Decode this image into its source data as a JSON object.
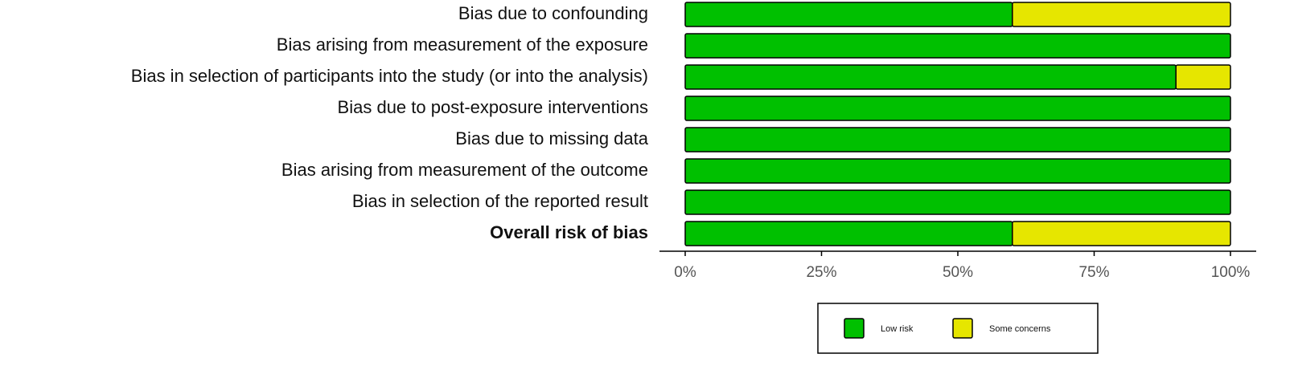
{
  "chart_data": {
    "type": "stacked-bar-horizontal",
    "categories": [
      "Bias due to confounding",
      "Bias arising from measurement of the exposure",
      "Bias in selection of participants into the study (or into the analysis)",
      "Bias due to post-exposure interventions",
      "Bias due to missing data",
      "Bias arising from measurement of the outcome",
      "Bias in selection of the reported result",
      "Overall risk of bias"
    ],
    "series": [
      {
        "name": "Low risk",
        "color": "#00c000",
        "values": [
          60,
          100,
          90,
          100,
          100,
          100,
          100,
          60
        ]
      },
      {
        "name": "Some concerns",
        "color": "#e6e600",
        "values": [
          40,
          0,
          10,
          0,
          0,
          0,
          0,
          40
        ]
      }
    ],
    "xlim": [
      0,
      100
    ],
    "xticks": [
      {
        "value": 0,
        "label": "0%"
      },
      {
        "value": 25,
        "label": "25%"
      },
      {
        "value": 50,
        "label": "50%"
      },
      {
        "value": 75,
        "label": "75%"
      },
      {
        "value": 100,
        "label": "100%"
      }
    ],
    "legend": "bottom"
  }
}
